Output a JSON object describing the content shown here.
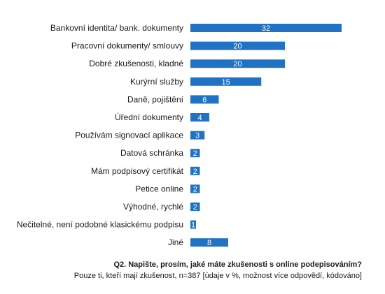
{
  "chart_data": {
    "type": "bar",
    "orientation": "horizontal",
    "categories": [
      "Bankovní identita/ bank. dokumenty",
      "Pracovní dokumenty/ smlouvy",
      "Dobré zkušenosti, kladné",
      "Kurýrní služby",
      "Daně, pojištění",
      "Úřední dokumenty",
      "Používám signovací aplikace",
      "Datová schránka",
      "Mám podpisový certifikát",
      "Petice online",
      "Výhodné, rychlé",
      "Nečitelné, není podobné klasickému podpisu",
      "Jiné"
    ],
    "values": [
      32,
      20,
      20,
      15,
      6,
      4,
      3,
      2,
      2,
      2,
      2,
      1,
      8
    ],
    "bar_color": "#1f72c4",
    "value_label_color": "#ffffff",
    "grid": false,
    "legend": "none"
  },
  "footnote": {
    "question": "Q2.  Napište, prosím, jaké máte zkušenosti s online podepisováním?",
    "note": "Pouze ti, kteří mají zkušenost, n=387 [údaje v %, možnost více odpovědí, kódováno]"
  }
}
